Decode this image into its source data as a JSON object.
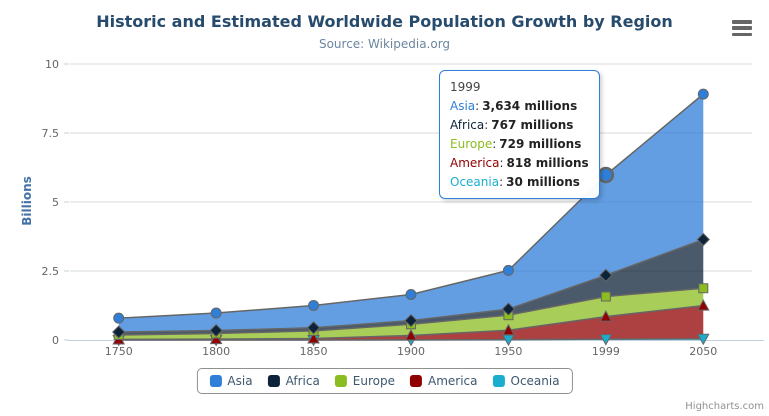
{
  "chart": {
    "title": "Historic and Estimated Worldwide Population Growth by Region",
    "subtitle": "Source: Wikipedia.org",
    "y_axis_title": "Billions",
    "credits": "Highcharts.com",
    "context_menu_icon": "hamburger-icon",
    "colors": {
      "title_text": "#274b6d",
      "subtitle_text": "#6D869F",
      "y_axis_title_text": "#4572A7",
      "axis_labels": "#666666",
      "grid_line": "#D8D8D8",
      "axis_line": "#C0D0E0",
      "series_outline": "#666666",
      "legend_text": "#3E576F",
      "legend_border": "#909090",
      "tooltip_border": "#2f7ed8",
      "credits_text": "#909090"
    }
  },
  "chart_data": {
    "type": "area",
    "stacking": "normal",
    "unit": "millions",
    "title": "Historic and Estimated Worldwide Population Growth by Region",
    "subtitle": "Source: Wikipedia.org",
    "xlabel": "",
    "ylabel": "Billions",
    "ylim": [
      0,
      10
    ],
    "yticks": [
      0,
      2.5,
      5,
      7.5,
      10
    ],
    "ytick_labels": [
      "0",
      "2.5",
      "5",
      "7.5",
      "10"
    ],
    "grid": "horizontal",
    "legend_position": "bottom",
    "categories": [
      "1750",
      "1800",
      "1850",
      "1900",
      "1950",
      "1999",
      "2050"
    ],
    "series": [
      {
        "name": "Asia",
        "color": "#2f7ed8",
        "marker": "circle",
        "values": [
          502,
          635,
          809,
          947,
          1402,
          3634,
          5268
        ]
      },
      {
        "name": "Africa",
        "color": "#0d233a",
        "marker": "diamond",
        "values": [
          106,
          107,
          111,
          133,
          221,
          767,
          1766
        ]
      },
      {
        "name": "Europe",
        "color": "#8bbc21",
        "marker": "square",
        "values": [
          163,
          203,
          276,
          408,
          547,
          729,
          628
        ]
      },
      {
        "name": "America",
        "color": "#910000",
        "marker": "triangle",
        "values": [
          18,
          31,
          54,
          156,
          339,
          818,
          1201
        ]
      },
      {
        "name": "Oceania",
        "color": "#1aadce",
        "marker": "triangle-down",
        "values": [
          2,
          2,
          2,
          6,
          13,
          30,
          46
        ]
      }
    ],
    "hover": {
      "series": "Asia",
      "category": "1999",
      "category_index": 5
    }
  },
  "tooltip": {
    "header": "1999",
    "colon": ":",
    "rows": [
      {
        "name": "Asia",
        "color": "#2f7ed8",
        "value": "3,634 millions"
      },
      {
        "name": "Africa",
        "color": "#0d233a",
        "value": "767 millions"
      },
      {
        "name": "Europe",
        "color": "#8bbc21",
        "value": "729 millions"
      },
      {
        "name": "America",
        "color": "#910000",
        "value": "818 millions"
      },
      {
        "name": "Oceania",
        "color": "#1aadce",
        "value": "30 millions"
      }
    ]
  }
}
